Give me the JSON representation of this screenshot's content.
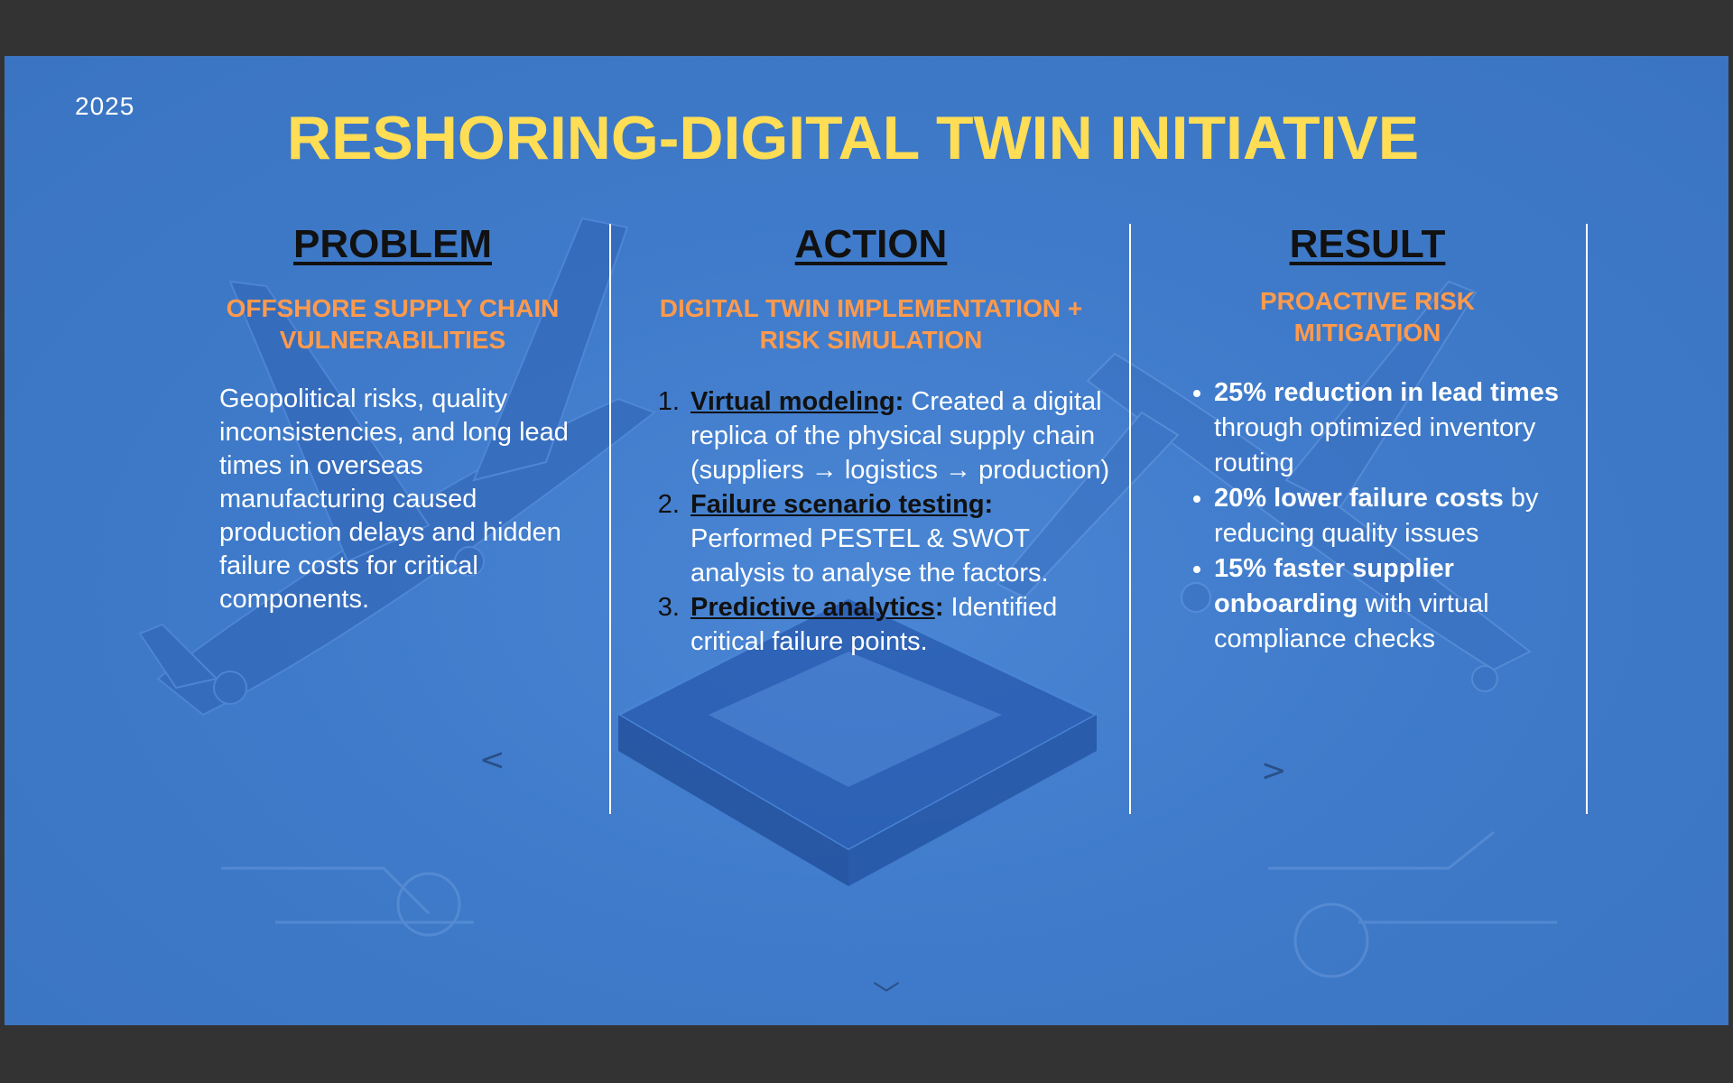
{
  "slide": {
    "year": "2025",
    "title": "RESHORING-DIGITAL TWIN INITIATIVE"
  },
  "columns": {
    "problem": {
      "heading": "PROBLEM",
      "subheading": "OFFSHORE SUPPLY CHAIN VULNERABILITIES",
      "body": "Geopolitical risks, quality inconsistencies, and long lead times in overseas manufacturing caused production delays and hidden failure costs for critical components."
    },
    "action": {
      "heading": "ACTION",
      "subheading": "DIGITAL TWIN IMPLEMENTATION + RISK SIMULATION",
      "steps": [
        {
          "key": "Virtual modeling",
          "colon": ":",
          "text": " Created a digital replica of the physical supply chain (suppliers → logistics → production)"
        },
        {
          "key": "Failure scenario testing",
          "colon": ":",
          "text": " Performed PESTEL & SWOT analysis to analyse the factors."
        },
        {
          "key": "Predictive analytics",
          "colon": ":",
          "text": " Identified critical failure points."
        }
      ]
    },
    "result": {
      "heading": "RESULT",
      "subheading": "PROACTIVE RISK MITIGATION",
      "items": [
        {
          "bold": "25% reduction in lead times",
          "text": " through optimized inventory routing"
        },
        {
          "bold": "20% lower failure costs",
          "text": " by reducing quality issues"
        },
        {
          "bold": "15% faster supplier onboarding",
          "text": " with virtual compliance checks"
        }
      ]
    }
  },
  "nav": {
    "prev_icon": "chevron-left-icon",
    "next_icon": "chevron-right-icon",
    "down_icon": "chevron-down-icon",
    "prev_glyph": "<",
    "next_glyph": ">",
    "down_glyph": "﹀"
  },
  "colors": {
    "title": "#ffdd55",
    "subheading": "#ff9a4d",
    "heading": "#111111",
    "slide_bg": "#3f7bca",
    "frame_bg": "#333333"
  }
}
